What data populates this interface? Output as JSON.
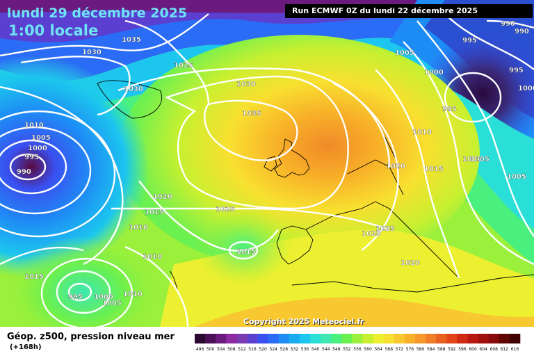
{
  "header": {
    "date": "lundi 29 décembre 2025",
    "time": "1:00 locale",
    "run": "Run ECMWF 0Z du lundi 22 décembre 2025"
  },
  "footer": {
    "field": "Géop. z500, pression niveau mer",
    "lead": "(+168h)",
    "copyright": "Copyright 2025 Meteociel.fr"
  },
  "isobar_labels": [
    "1035",
    "1030",
    "1025",
    "1030",
    "1035",
    "1030",
    "1010",
    "1005",
    "1000",
    "995",
    "990",
    "1020",
    "1015",
    "1010",
    "1025",
    "1015",
    "1010",
    "1015",
    "995",
    "1000",
    "1005",
    "1010",
    "1005",
    "1010",
    "1015",
    "1020",
    "1025",
    "1025",
    "1020",
    "1005",
    "1000",
    "995",
    "1000",
    "995",
    "990",
    "990",
    "995",
    "1005",
    "1005"
  ],
  "legend": {
    "values": [
      "496",
      "500",
      "504",
      "508",
      "512",
      "516",
      "520",
      "524",
      "528",
      "532",
      "536",
      "540",
      "544",
      "548",
      "552",
      "556",
      "560",
      "564",
      "568",
      "572",
      "576",
      "580",
      "584",
      "588",
      "592",
      "596",
      "600",
      "604",
      "608",
      "612",
      "616"
    ],
    "colors": [
      "#2a0a2e",
      "#4a0f55",
      "#6b1a7d",
      "#8c2aa0",
      "#7a3ab0",
      "#5a3fd0",
      "#3a4ff0",
      "#2a6cf5",
      "#1e8cf5",
      "#1aaaf0",
      "#1cc6ee",
      "#2adfd8",
      "#3ee8b0",
      "#4af07e",
      "#6af050",
      "#9af03a",
      "#c8f030",
      "#ecf030",
      "#f8e030",
      "#f8c830",
      "#f8b028",
      "#f8982a",
      "#f07c28",
      "#e86020",
      "#e04418",
      "#d02a14",
      "#b81810",
      "#a0100c",
      "#880a0a",
      "#600404",
      "#400000"
    ]
  }
}
